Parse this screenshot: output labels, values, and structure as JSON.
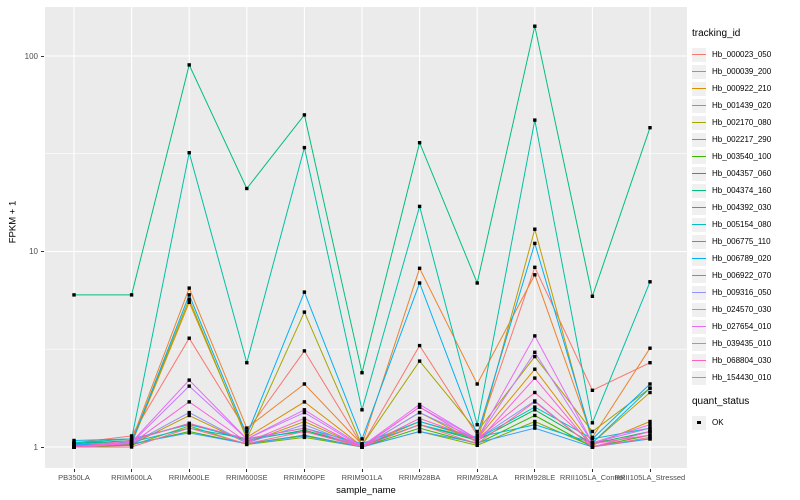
{
  "chart_data": {
    "type": "line",
    "title": "",
    "xlabel": "sample_name",
    "ylabel": "FPKM + 1",
    "y_scale": "log10",
    "ylim": [
      1,
      178
    ],
    "y_ticks": [
      1,
      10,
      100
    ],
    "y_tick_labels": [
      "1",
      "10",
      "100"
    ],
    "y_minor_gridlines": [
      3.1623,
      31.623
    ],
    "grid": "on",
    "panel_bg": "#EBEBEB",
    "grid_color": "#FFFFFF",
    "marker": {
      "shape": "square",
      "color": "#000000",
      "size": 3.4
    },
    "legend_position": "right",
    "categories": [
      "PB350LA",
      "RRIM600LA",
      "RRIM600LE",
      "RRIM600SE",
      "RRIM600PE",
      "RRIM901LA",
      "RRIM928BA",
      "RRIM928LA",
      "RRIM928LE",
      "RRII105LA_Control",
      "RRII105LA_Stressed"
    ],
    "series": [
      {
        "name": "Hb_000023_050",
        "color": "#F8766D",
        "values": [
          1.05,
          1.14,
          3.6,
          1.2,
          3.1,
          1.02,
          3.3,
          1.15,
          8.3,
          1.95,
          2.7
        ]
      },
      {
        "name": "Hb_000039_200",
        "color": "#EA8331",
        "values": [
          1.02,
          1.08,
          6.5,
          1.25,
          2.1,
          1.03,
          8.2,
          2.1,
          7.6,
          1.12,
          3.2
        ]
      },
      {
        "name": "Hb_000922_210",
        "color": "#D89000",
        "values": [
          1.0,
          1.04,
          5.5,
          1.12,
          1.7,
          1.01,
          1.35,
          1.1,
          2.5,
          1.02,
          1.35
        ]
      },
      {
        "name": "Hb_001439_020",
        "color": "#C09B00",
        "values": [
          1.0,
          1.03,
          1.45,
          1.05,
          1.35,
          1.0,
          1.5,
          1.06,
          13.0,
          1.05,
          1.9
        ]
      },
      {
        "name": "Hb_002170_080",
        "color": "#A3A500",
        "values": [
          1.01,
          1.05,
          5.7,
          1.1,
          4.9,
          1.02,
          2.75,
          1.2,
          2.9,
          1.2,
          2.0
        ]
      },
      {
        "name": "Hb_002217_290",
        "color": "#7CAE00",
        "values": [
          1.0,
          1.02,
          1.28,
          1.03,
          1.12,
          1.0,
          1.2,
          1.02,
          1.35,
          1.01,
          1.1
        ]
      },
      {
        "name": "Hb_003540_100",
        "color": "#39B600",
        "values": [
          1.0,
          1.03,
          1.2,
          1.04,
          1.15,
          1.0,
          1.25,
          1.04,
          1.45,
          1.0,
          1.15
        ]
      },
      {
        "name": "Hb_004357_060",
        "color": "#00BB4E",
        "values": [
          1.04,
          1.08,
          1.32,
          1.08,
          1.22,
          1.01,
          1.3,
          1.08,
          1.55,
          1.04,
          1.2
        ]
      },
      {
        "name": "Hb_004374_160",
        "color": "#00BF7D",
        "values": [
          6.0,
          6.0,
          90.0,
          21.0,
          50.0,
          2.4,
          36.0,
          6.9,
          142.0,
          5.9,
          43.0
        ]
      },
      {
        "name": "Hb_004392_030",
        "color": "#00C1A3",
        "values": [
          1.05,
          1.1,
          32.0,
          2.7,
          34.0,
          1.55,
          17.0,
          1.3,
          47.0,
          1.33,
          7.0
        ]
      },
      {
        "name": "Hb_005154_080",
        "color": "#00BFC4",
        "values": [
          1.06,
          1.06,
          1.25,
          1.1,
          1.2,
          1.02,
          1.3,
          1.1,
          1.6,
          1.1,
          1.25
        ]
      },
      {
        "name": "Hb_006775_110",
        "color": "#00BADE",
        "values": [
          1.08,
          1.1,
          1.3,
          1.1,
          1.25,
          1.04,
          1.35,
          1.12,
          1.3,
          1.05,
          2.0
        ]
      },
      {
        "name": "Hb_006789_020",
        "color": "#00B0F6",
        "values": [
          1.02,
          1.05,
          6.0,
          1.15,
          6.2,
          1.1,
          6.9,
          1.15,
          11.0,
          1.1,
          2.1
        ]
      },
      {
        "name": "Hb_006922_070",
        "color": "#35A2FF",
        "values": [
          1.03,
          1.04,
          1.18,
          1.04,
          1.14,
          1.0,
          1.2,
          1.05,
          1.25,
          1.0,
          1.1
        ]
      },
      {
        "name": "Hb_009316_050",
        "color": "#9590FF",
        "values": [
          1.0,
          1.04,
          1.5,
          1.05,
          1.3,
          1.0,
          1.5,
          1.1,
          1.72,
          1.0,
          1.2
        ]
      },
      {
        "name": "Hb_024570_030",
        "color": "#C77CFF",
        "values": [
          1.0,
          1.05,
          2.05,
          1.1,
          1.5,
          1.0,
          1.6,
          1.1,
          3.05,
          1.05,
          1.25
        ]
      },
      {
        "name": "Hb_027654_010",
        "color": "#E76BF3",
        "values": [
          1.0,
          1.06,
          2.2,
          1.1,
          1.55,
          1.01,
          1.65,
          1.1,
          3.7,
          1.05,
          1.3
        ]
      },
      {
        "name": "Hb_039435_010",
        "color": "#FA62DB",
        "values": [
          1.0,
          1.04,
          1.7,
          1.06,
          1.4,
          1.0,
          1.6,
          1.06,
          2.25,
          1.0,
          1.2
        ]
      },
      {
        "name": "Hb_068804_030",
        "color": "#FF62BC",
        "values": [
          1.0,
          1.08,
          1.32,
          1.1,
          1.25,
          1.0,
          1.4,
          1.1,
          1.9,
          1.04,
          1.15
        ]
      },
      {
        "name": "Hb_154430_010",
        "color": "#FF6A98",
        "values": [
          1.0,
          1.0,
          1.25,
          1.04,
          1.2,
          1.0,
          1.3,
          1.04,
          1.7,
          1.0,
          1.12
        ]
      }
    ],
    "legend": {
      "color_title": "tracking_id",
      "shape_title": "quant_status",
      "shape_items": [
        {
          "label": "OK",
          "marker": "black-square"
        }
      ]
    }
  }
}
